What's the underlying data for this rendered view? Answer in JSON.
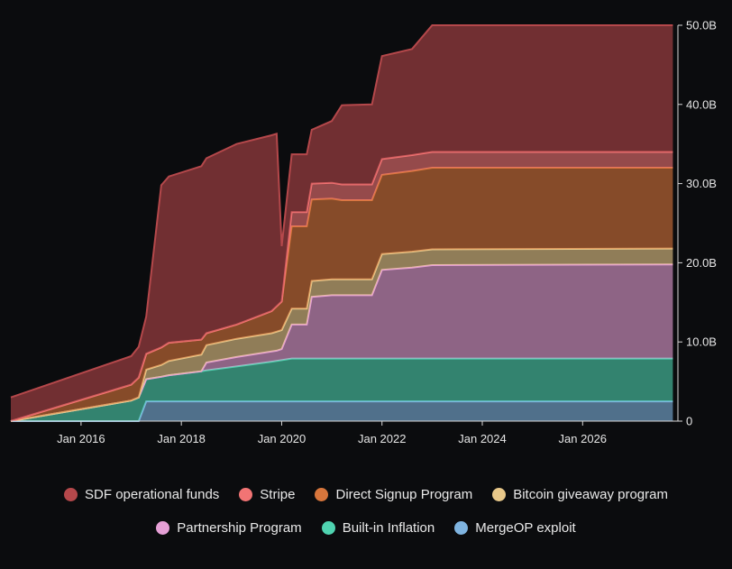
{
  "chart_data": {
    "type": "area",
    "stacked": true,
    "xlabel": "",
    "ylabel": "",
    "x_tick_labels": [
      "Jan 2016",
      "Jan 2018",
      "Jan 2020",
      "Jan 2022",
      "Jan 2024",
      "Jan 2026"
    ],
    "y_tick_labels": [
      "0",
      "10.0B",
      "20.0B",
      "30.0B",
      "40.0B",
      "50.0B"
    ],
    "x": [
      2014.6,
      2017.0,
      2017.15,
      2017.3,
      2017.6,
      2017.75,
      2018.4,
      2018.5,
      2019.1,
      2019.8,
      2019.9,
      2020.0,
      2020.2,
      2020.5,
      2020.6,
      2021.0,
      2021.2,
      2021.8,
      2022.0,
      2022.6,
      2023.0,
      2027.8
    ],
    "series": [
      {
        "name": "MergeOP exploit",
        "color": "#7fb4e0",
        "values": [
          0.0,
          0.0,
          0.0,
          2.5,
          2.5,
          2.5,
          2.5,
          2.5,
          2.5,
          2.5,
          2.5,
          2.5,
          2.5,
          2.5,
          2.5,
          2.5,
          2.5,
          2.5,
          2.5,
          2.5,
          2.5,
          2.5
        ]
      },
      {
        "name": "Built-in Inflation",
        "color": "#4fd3b0",
        "values": [
          0.0,
          2.6,
          3.0,
          2.8,
          3.1,
          3.3,
          3.8,
          3.9,
          4.4,
          5.0,
          5.1,
          5.2,
          5.4,
          5.4,
          5.4,
          5.4,
          5.4,
          5.4,
          5.4,
          5.4,
          5.4,
          5.4
        ]
      },
      {
        "name": "Partnership Program",
        "color": "#e6a0d6",
        "values": [
          0.0,
          0.0,
          0.0,
          0.0,
          0.0,
          0.0,
          0.0,
          1.0,
          1.2,
          1.3,
          1.3,
          1.4,
          4.3,
          4.3,
          7.8,
          8.0,
          8.0,
          8.0,
          11.2,
          11.5,
          11.8,
          11.9
        ]
      },
      {
        "name": "Bitcoin giveaway program",
        "color": "#e9c98a",
        "values": [
          0.0,
          0.0,
          0.0,
          1.2,
          1.5,
          1.8,
          2.1,
          2.2,
          2.3,
          2.3,
          2.4,
          2.4,
          2.0,
          2.0,
          2.0,
          2.0,
          2.0,
          2.0,
          2.0,
          2.0,
          2.0,
          2.0
        ]
      },
      {
        "name": "Direct Signup Program",
        "color": "#d8763c",
        "values": [
          0.0,
          2.0,
          2.5,
          2.0,
          2.2,
          2.3,
          1.9,
          1.5,
          1.8,
          2.8,
          3.2,
          3.6,
          10.4,
          10.4,
          10.3,
          10.2,
          10.0,
          10.0,
          10.0,
          10.2,
          10.3,
          10.2
        ]
      },
      {
        "name": "Stripe",
        "color": "#f27474",
        "values": [
          0.0,
          0.0,
          0.0,
          0.0,
          0.0,
          0.0,
          0.0,
          0.0,
          0.0,
          0.0,
          0.0,
          0.0,
          1.8,
          1.8,
          2.0,
          2.0,
          2.0,
          2.0,
          2.0,
          2.0,
          2.0,
          2.0
        ]
      },
      {
        "name": "SDF operational funds",
        "color": "#b5484b",
        "values": [
          3.0,
          3.6,
          3.9,
          4.7,
          20.5,
          21.0,
          21.9,
          22.1,
          22.8,
          22.2,
          21.8,
          7.0,
          7.3,
          7.3,
          6.8,
          7.8,
          10.0,
          10.1,
          13.0,
          13.4,
          16.0,
          16.0
        ]
      }
    ],
    "ylim": [
      0,
      50
    ],
    "xlim": [
      2014.6,
      2027.9
    ],
    "legend": {
      "position": "bottom"
    }
  },
  "legend_items": [
    {
      "label": "SDF operational funds",
      "color": "#b5484b"
    },
    {
      "label": "Stripe",
      "color": "#f27474"
    },
    {
      "label": "Direct Signup Program",
      "color": "#d8763c"
    },
    {
      "label": "Bitcoin giveaway program",
      "color": "#e9c98a"
    },
    {
      "label": "Partnership Program",
      "color": "#e6a0d6"
    },
    {
      "label": "Built-in Inflation",
      "color": "#4fd3b0"
    },
    {
      "label": "MergeOP exploit",
      "color": "#7fb4e0"
    }
  ]
}
